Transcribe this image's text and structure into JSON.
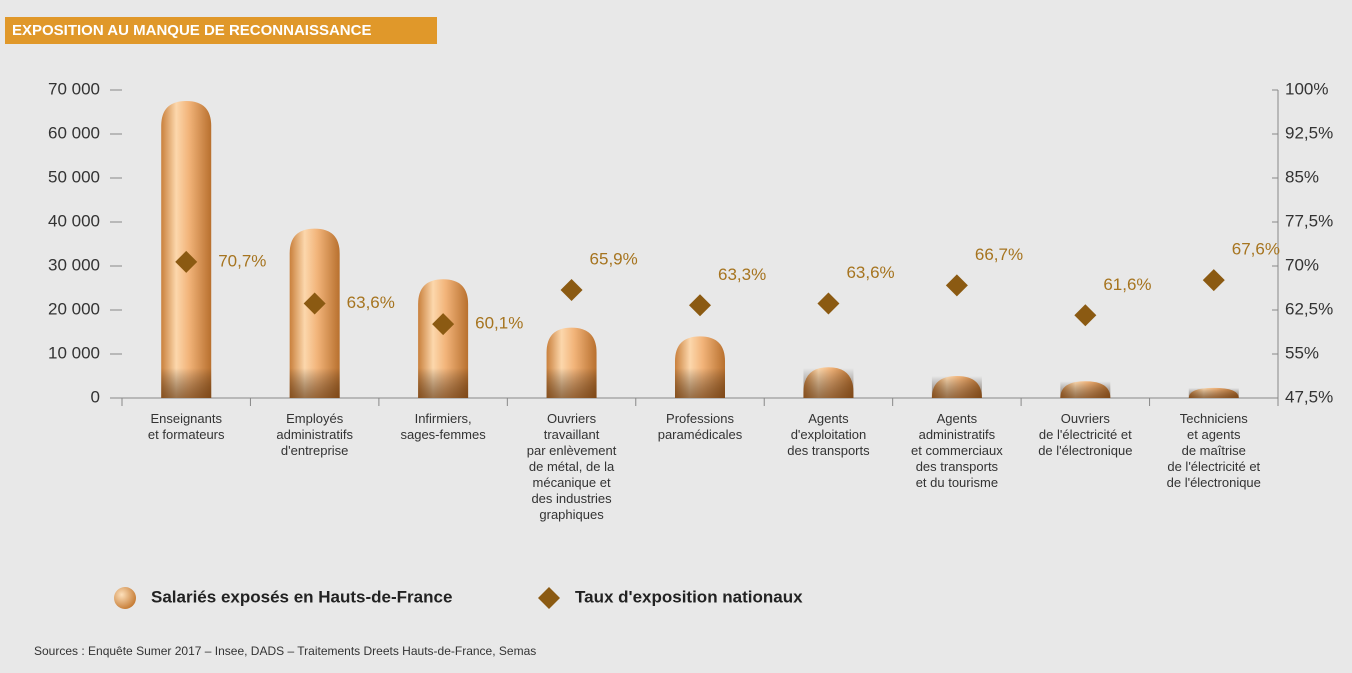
{
  "chart_data": {
    "type": "bar",
    "title": "EXPOSITION AU MANQUE DE RECONNAISSANCE",
    "source": "Sources : Enquête Sumer 2017 – Insee, DADS – Traitements Dreets Hauts-de-France, Semas",
    "categories": [
      "Enseignants\net formateurs",
      "Employés\nadministratifs\nd'entreprise",
      "Infirmiers,\nsages-femmes",
      "Ouvriers\ntravaillant\npar enlèvement\nde métal, de la\nmécanique et\ndes industries\ngraphiques",
      "Professions\nparamédicales",
      "Agents\nd'exploitation\ndes transports",
      "Agents\nadministratifs\net commerciaux\ndes transports\net du tourisme",
      "Ouvriers\nde l'électricité et\nde l'électronique",
      "Techniciens\net agents\nde maîtrise\nde l'électricité et\nde l'électronique"
    ],
    "series": [
      {
        "name": "Salariés exposés en Hauts-de-France",
        "type": "bar",
        "color": "#e9a463",
        "axis": "y",
        "values": [
          67500,
          38500,
          27000,
          16000,
          14000,
          7000,
          5000,
          3800,
          2300
        ]
      },
      {
        "name": "Taux d'exposition nationaux",
        "type": "scatter",
        "color": "#8b5a12",
        "axis": "y2",
        "values": [
          70.7,
          63.6,
          60.1,
          65.9,
          63.3,
          63.6,
          66.7,
          61.6,
          67.6
        ],
        "value_labels": [
          "70,7%",
          "63,6%",
          "60,1%",
          "65,9%",
          "63,3%",
          "63,6%",
          "66,7%",
          "61,6%",
          "67,6%"
        ]
      }
    ],
    "ylim": [
      0,
      70000
    ],
    "yticks": [
      0,
      {
        "value": 10000,
        "label": "10 000"
      },
      {
        "value": 20000,
        "label": "20 000"
      },
      {
        "value": 30000,
        "label": "30 000"
      },
      {
        "value": 40000,
        "label": "40 000"
      },
      {
        "value": 50000,
        "label": "50 000"
      },
      {
        "value": 60000,
        "label": "60 000"
      },
      {
        "value": 70000,
        "label": "70 000"
      }
    ],
    "y2lim": [
      47.5,
      100
    ],
    "y2ticks": [
      {
        "value": 47.5,
        "label": "47,5%"
      },
      {
        "value": 55,
        "label": "55%"
      },
      {
        "value": 62.5,
        "label": "62,5%"
      },
      {
        "value": 70,
        "label": "70%"
      },
      {
        "value": 77.5,
        "label": "77,5%"
      },
      {
        "value": 85,
        "label": "85%"
      },
      {
        "value": 92.5,
        "label": "92,5%"
      },
      {
        "value": 100,
        "label": "100%"
      }
    ],
    "legend": "bottom-left"
  }
}
